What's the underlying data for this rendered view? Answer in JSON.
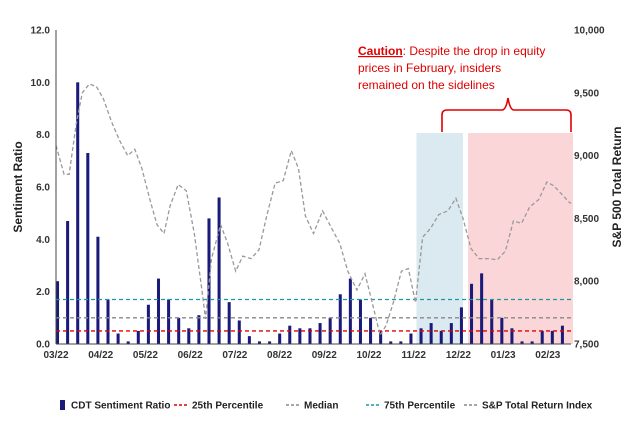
{
  "chart_data": {
    "type": "bar",
    "y_left": {
      "label": "Sentiment Ratio",
      "min": 0,
      "max": 12,
      "ticks": [
        "0.0",
        "2.0",
        "4.0",
        "6.0",
        "8.0",
        "10.0",
        "12.0"
      ]
    },
    "y_right": {
      "label": "S&P 500  Total Return",
      "min": 7500,
      "max": 10000,
      "ticks": [
        "7,500",
        "8,000",
        "8,500",
        "9,000",
        "9,500",
        "10,000"
      ]
    },
    "x_ticks": [
      "03/22",
      "04/22",
      "05/22",
      "06/22",
      "07/22",
      "08/22",
      "09/22",
      "10/22",
      "11/22",
      "12/22",
      "01/23",
      "02/23"
    ],
    "x_range": [
      0,
      51
    ],
    "sentiment_values": [
      2.4,
      4.7,
      10.0,
      7.3,
      4.1,
      1.7,
      0.4,
      0.1,
      0.5,
      1.5,
      2.5,
      1.7,
      1.0,
      0.6,
      1.1,
      4.8,
      5.6,
      1.6,
      0.9,
      0.3,
      0.1,
      0.1,
      0.4,
      0.7,
      0.6,
      0.6,
      0.8,
      1.0,
      1.9,
      2.5,
      1.7,
      1.0,
      0.5,
      0.1,
      0.1,
      0.4,
      0.6,
      0.8,
      0.5,
      0.8,
      1.4,
      2.3,
      2.7,
      1.7,
      1.0,
      0.6,
      0.1,
      0.1,
      0.5,
      0.5,
      0.7
    ],
    "percentile_25": 0.5,
    "median": 1.0,
    "percentile_75": 1.7,
    "sp500_points": [
      [
        0,
        9080
      ],
      [
        0.8,
        8850
      ],
      [
        1.3,
        8850
      ],
      [
        2,
        9250
      ],
      [
        2.6,
        9500
      ],
      [
        3.3,
        9570
      ],
      [
        4,
        9550
      ],
      [
        4.7,
        9450
      ],
      [
        5.5,
        9270
      ],
      [
        6.3,
        9120
      ],
      [
        7.1,
        9000
      ],
      [
        7.8,
        9050
      ],
      [
        8.5,
        8900
      ],
      [
        9.3,
        8650
      ],
      [
        10,
        8450
      ],
      [
        10.7,
        8380
      ],
      [
        11.3,
        8600
      ],
      [
        12.1,
        8770
      ],
      [
        12.9,
        8720
      ],
      [
        13.7,
        8380
      ],
      [
        14.5,
        7900
      ],
      [
        14.8,
        7700
      ],
      [
        15.4,
        8180
      ],
      [
        16.3,
        8450
      ],
      [
        17,
        8300
      ],
      [
        17.8,
        8080
      ],
      [
        18.5,
        8200
      ],
      [
        19.3,
        8180
      ],
      [
        20.1,
        8250
      ],
      [
        20.9,
        8530
      ],
      [
        21.7,
        8780
      ],
      [
        22.5,
        8800
      ],
      [
        23.3,
        9040
      ],
      [
        24,
        8900
      ],
      [
        24.7,
        8520
      ],
      [
        25.5,
        8380
      ],
      [
        26.4,
        8560
      ],
      [
        27.3,
        8420
      ],
      [
        28.1,
        8300
      ],
      [
        28.9,
        8080
      ],
      [
        29.8,
        7930
      ],
      [
        30.6,
        8060
      ],
      [
        31.4,
        7800
      ],
      [
        32.1,
        7570
      ],
      [
        32.7,
        7650
      ],
      [
        33.4,
        7830
      ],
      [
        34.2,
        8080
      ],
      [
        34.9,
        8100
      ],
      [
        35.6,
        7830
      ],
      [
        36.3,
        8350
      ],
      [
        37.1,
        8420
      ],
      [
        37.9,
        8530
      ],
      [
        38.8,
        8560
      ],
      [
        39.6,
        8660
      ],
      [
        40.3,
        8500
      ],
      [
        41.1,
        8260
      ],
      [
        41.9,
        8180
      ],
      [
        42.8,
        8180
      ],
      [
        43.7,
        8170
      ],
      [
        44.5,
        8240
      ],
      [
        45.3,
        8480
      ],
      [
        46.1,
        8460
      ],
      [
        46.9,
        8590
      ],
      [
        47.8,
        8650
      ],
      [
        48.6,
        8790
      ],
      [
        49.3,
        8760
      ],
      [
        50,
        8700
      ],
      [
        50.8,
        8630
      ],
      [
        51,
        8620
      ]
    ],
    "shaded_regions": [
      {
        "from": 35.7,
        "to": 40.3,
        "color": "#dbeaf0"
      },
      {
        "from": 40.8,
        "to": 51.2,
        "color": "#fbd6d9"
      }
    ],
    "annotation": {
      "prefix": "Caution",
      "line1": ": Despite the drop in equity",
      "line2": "prices in February, insiders",
      "line3": "remained on the sidelines"
    },
    "legend": [
      {
        "label": "CDT Sentiment Ratio",
        "kind": "bar",
        "color": "#1a1a7a"
      },
      {
        "label": "25th Percentile",
        "kind": "dash",
        "color": "#e00000"
      },
      {
        "label": "Median",
        "kind": "dash",
        "color": "#888888"
      },
      {
        "label": "75th Percentile",
        "kind": "dash",
        "color": "#1a9aa0"
      },
      {
        "label": "S&P Total Return Index",
        "kind": "dash",
        "color": "#888888"
      }
    ],
    "colors": {
      "bar": "#1a1a7a",
      "p25": "#e00000",
      "median": "#888888",
      "p75": "#1a9aa0",
      "sp500": "#999999",
      "annotation": "#e00000"
    }
  }
}
